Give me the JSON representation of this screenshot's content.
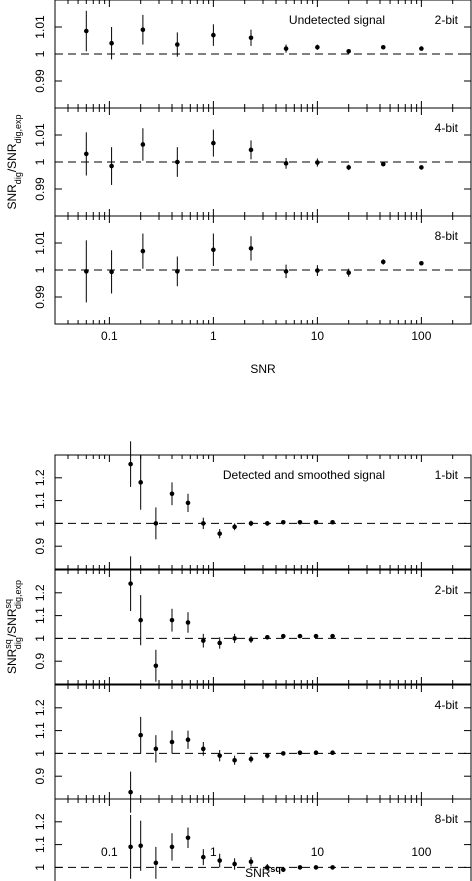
{
  "chart_data": [
    {
      "type": "scatter",
      "title": "Undetected signal",
      "xscale": "log",
      "xlim": [
        0.03,
        300
      ],
      "xticks": [
        0.1,
        1,
        10,
        100
      ],
      "xtick_labels": [
        "0.1",
        "1",
        "10",
        "100"
      ],
      "xlabel": "SNR",
      "ylabel_main": "SNR",
      "ylabel_sub": "dig",
      "ylabel_sep": "/SNR",
      "ylabel_sub2": "dig,exp",
      "ylim": [
        0.98,
        1.02
      ],
      "yticks": [
        0.99,
        1,
        1.01
      ],
      "ytick_labels": [
        "0.99",
        "1",
        "1.01"
      ],
      "reference_line": 1.0,
      "panels": [
        {
          "label": "2-bit",
          "points": [
            {
              "x": 0.06,
              "y": 1.0085,
              "err": 0.0075
            },
            {
              "x": 0.105,
              "y": 1.004,
              "err": 0.006
            },
            {
              "x": 0.21,
              "y": 1.009,
              "err": 0.0055
            },
            {
              "x": 0.45,
              "y": 1.0035,
              "err": 0.0045
            },
            {
              "x": 1.0,
              "y": 1.007,
              "err": 0.004
            },
            {
              "x": 2.3,
              "y": 1.006,
              "err": 0.003
            },
            {
              "x": 5.0,
              "y": 1.002,
              "err": 0.0015
            },
            {
              "x": 10.0,
              "y": 1.0025,
              "err": 0.001
            },
            {
              "x": 20.0,
              "y": 1.001,
              "err": 0.0007
            },
            {
              "x": 43.0,
              "y": 1.0025,
              "err": 0.0005
            },
            {
              "x": 100.0,
              "y": 1.002,
              "err": 0.0003
            }
          ]
        },
        {
          "label": "4-bit",
          "points": [
            {
              "x": 0.06,
              "y": 1.003,
              "err": 0.008
            },
            {
              "x": 0.105,
              "y": 0.9985,
              "err": 0.007
            },
            {
              "x": 0.21,
              "y": 1.0065,
              "err": 0.006
            },
            {
              "x": 0.45,
              "y": 1.0,
              "err": 0.0055
            },
            {
              "x": 1.0,
              "y": 1.007,
              "err": 0.005
            },
            {
              "x": 2.3,
              "y": 1.0045,
              "err": 0.0035
            },
            {
              "x": 5.0,
              "y": 0.9995,
              "err": 0.002
            },
            {
              "x": 10.0,
              "y": 0.9998,
              "err": 0.0015
            },
            {
              "x": 20.0,
              "y": 0.998,
              "err": 0.001
            },
            {
              "x": 43.0,
              "y": 0.9992,
              "err": 0.0007
            },
            {
              "x": 100.0,
              "y": 0.998,
              "err": 0.0003
            }
          ]
        },
        {
          "label": "8-bit",
          "points": [
            {
              "x": 0.06,
              "y": 0.9995,
              "err": 0.0115
            },
            {
              "x": 0.105,
              "y": 0.9993,
              "err": 0.008
            },
            {
              "x": 0.21,
              "y": 1.007,
              "err": 0.0065
            },
            {
              "x": 0.45,
              "y": 0.9995,
              "err": 0.0055
            },
            {
              "x": 1.0,
              "y": 1.0075,
              "err": 0.006
            },
            {
              "x": 2.3,
              "y": 1.008,
              "err": 0.0045
            },
            {
              "x": 5.0,
              "y": 0.9995,
              "err": 0.0025
            },
            {
              "x": 10.0,
              "y": 0.9998,
              "err": 0.002
            },
            {
              "x": 20.0,
              "y": 0.999,
              "err": 0.0015
            },
            {
              "x": 43.0,
              "y": 1.003,
              "err": 0.001
            },
            {
              "x": 100.0,
              "y": 1.0025,
              "err": 0.0007
            }
          ]
        }
      ]
    },
    {
      "type": "scatter",
      "title": "Detected and smoothed signal",
      "xscale": "log",
      "xlim": [
        0.03,
        300
      ],
      "xticks": [
        0.1,
        1,
        10,
        100
      ],
      "xtick_labels": [
        "0.1",
        "1",
        "10",
        "100"
      ],
      "xlabel_main": "SNR",
      "xlabel_sup": "sq",
      "ylabel_main": "SNR",
      "ylabel_sup": "sq",
      "ylabel_sub": "dig",
      "ylabel_sep": "/SNR",
      "ylabel_sup2": "sq",
      "ylabel_sub2": "dig,exp",
      "ylim": [
        0.8,
        1.3
      ],
      "yticks": [
        0.9,
        1.0,
        1.1,
        1.2
      ],
      "ytick_labels": [
        "0.9",
        "1",
        "1.1",
        "1.2"
      ],
      "reference_line": 1.0,
      "panels": [
        {
          "label": "1-bit",
          "points": [
            {
              "x": 0.16,
              "y": 1.26,
              "err": 0.1
            },
            {
              "x": 0.2,
              "y": 1.18,
              "err": 0.12
            },
            {
              "x": 0.28,
              "y": 1.0,
              "err": 0.07
            },
            {
              "x": 0.4,
              "y": 1.13,
              "err": 0.05
            },
            {
              "x": 0.57,
              "y": 1.09,
              "err": 0.04
            },
            {
              "x": 0.8,
              "y": 1.0,
              "err": 0.025
            },
            {
              "x": 1.15,
              "y": 0.955,
              "err": 0.02
            },
            {
              "x": 1.6,
              "y": 0.985,
              "err": 0.015
            },
            {
              "x": 2.3,
              "y": 1.0,
              "err": 0.012
            },
            {
              "x": 3.3,
              "y": 1.0,
              "err": 0.01
            },
            {
              "x": 4.7,
              "y": 1.005,
              "err": 0.008
            },
            {
              "x": 6.8,
              "y": 1.005,
              "err": 0.006
            },
            {
              "x": 9.7,
              "y": 1.005,
              "err": 0.005
            },
            {
              "x": 14.0,
              "y": 1.005,
              "err": 0.004
            }
          ]
        },
        {
          "label": "2-bit",
          "points": [
            {
              "x": 0.16,
              "y": 1.24,
              "err": 0.12
            },
            {
              "x": 0.2,
              "y": 1.08,
              "err": 0.11
            },
            {
              "x": 0.28,
              "y": 0.88,
              "err": 0.07
            },
            {
              "x": 0.4,
              "y": 1.08,
              "err": 0.05
            },
            {
              "x": 0.57,
              "y": 1.07,
              "err": 0.045
            },
            {
              "x": 0.8,
              "y": 0.99,
              "err": 0.03
            },
            {
              "x": 1.15,
              "y": 0.98,
              "err": 0.025
            },
            {
              "x": 1.6,
              "y": 1.0,
              "err": 0.02
            },
            {
              "x": 2.3,
              "y": 0.995,
              "err": 0.015
            },
            {
              "x": 3.3,
              "y": 1.005,
              "err": 0.01
            },
            {
              "x": 4.7,
              "y": 1.01,
              "err": 0.008
            },
            {
              "x": 6.8,
              "y": 1.01,
              "err": 0.006
            },
            {
              "x": 9.7,
              "y": 1.01,
              "err": 0.005
            },
            {
              "x": 14.0,
              "y": 1.01,
              "err": 0.004
            }
          ]
        },
        {
          "label": "4-bit",
          "points": [
            {
              "x": 0.16,
              "y": 0.83,
              "err": 0.09
            },
            {
              "x": 0.2,
              "y": 1.08,
              "err": 0.08
            },
            {
              "x": 0.28,
              "y": 1.02,
              "err": 0.06
            },
            {
              "x": 0.4,
              "y": 1.05,
              "err": 0.05
            },
            {
              "x": 0.57,
              "y": 1.06,
              "err": 0.04
            },
            {
              "x": 0.8,
              "y": 1.02,
              "err": 0.03
            },
            {
              "x": 1.15,
              "y": 0.99,
              "err": 0.025
            },
            {
              "x": 1.6,
              "y": 0.97,
              "err": 0.02
            },
            {
              "x": 2.3,
              "y": 0.975,
              "err": 0.015
            },
            {
              "x": 3.3,
              "y": 0.99,
              "err": 0.012
            },
            {
              "x": 4.7,
              "y": 1.0,
              "err": 0.008
            },
            {
              "x": 6.8,
              "y": 1.003,
              "err": 0.006
            },
            {
              "x": 9.7,
              "y": 1.003,
              "err": 0.005
            },
            {
              "x": 14.0,
              "y": 1.003,
              "err": 0.004
            }
          ]
        },
        {
          "label": "8-bit",
          "points": [
            {
              "x": 0.16,
              "y": 1.09,
              "err": 0.14
            },
            {
              "x": 0.2,
              "y": 1.095,
              "err": 0.11
            },
            {
              "x": 0.28,
              "y": 1.02,
              "err": 0.07
            },
            {
              "x": 0.4,
              "y": 1.09,
              "err": 0.06
            },
            {
              "x": 0.57,
              "y": 1.13,
              "err": 0.045
            },
            {
              "x": 0.8,
              "y": 1.045,
              "err": 0.035
            },
            {
              "x": 1.15,
              "y": 1.03,
              "err": 0.03
            },
            {
              "x": 1.6,
              "y": 1.015,
              "err": 0.025
            },
            {
              "x": 2.3,
              "y": 1.025,
              "err": 0.02
            },
            {
              "x": 3.3,
              "y": 1.0,
              "err": 0.015
            },
            {
              "x": 4.7,
              "y": 0.99,
              "err": 0.01
            },
            {
              "x": 6.8,
              "y": 1.0,
              "err": 0.006
            },
            {
              "x": 9.7,
              "y": 1.0,
              "err": 0.005
            },
            {
              "x": 14.0,
              "y": 1.0,
              "err": 0.004
            }
          ]
        }
      ]
    }
  ]
}
